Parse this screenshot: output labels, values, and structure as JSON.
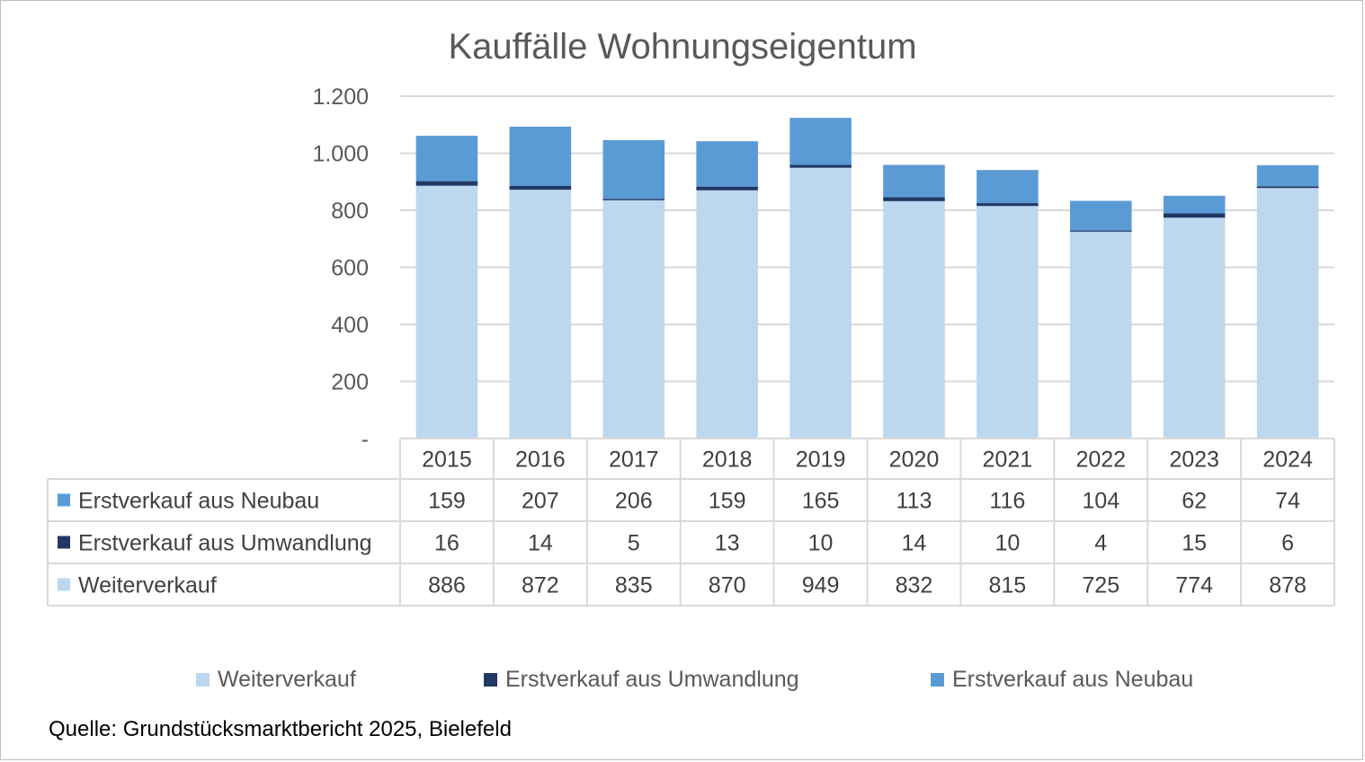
{
  "chart_data": {
    "type": "bar",
    "stacked": true,
    "title": "Kauffälle Wohnungseigentum",
    "categories": [
      "2015",
      "2016",
      "2017",
      "2018",
      "2019",
      "2020",
      "2021",
      "2022",
      "2023",
      "2024"
    ],
    "series": [
      {
        "name": "Weiterverkauf",
        "color": "#bdd7ee",
        "values": [
          886,
          872,
          835,
          870,
          949,
          832,
          815,
          725,
          774,
          878
        ]
      },
      {
        "name": "Erstverkauf aus Umwandlung",
        "color": "#203864",
        "values": [
          16,
          14,
          5,
          13,
          10,
          14,
          10,
          4,
          15,
          6
        ]
      },
      {
        "name": "Erstverkauf aus Neubau",
        "color": "#5b9bd5",
        "values": [
          159,
          207,
          206,
          159,
          165,
          113,
          116,
          104,
          62,
          74
        ]
      }
    ],
    "table_row_order": [
      "Erstverkauf aus Neubau",
      "Erstverkauf aus Umwandlung",
      "Weiterverkauf"
    ],
    "y_ticks": [
      {
        "value": 0,
        "label": "-"
      },
      {
        "value": 200,
        "label": "200"
      },
      {
        "value": 400,
        "label": "400"
      },
      {
        "value": 600,
        "label": "600"
      },
      {
        "value": 800,
        "label": "800"
      },
      {
        "value": 1000,
        "label": "1.000"
      },
      {
        "value": 1200,
        "label": "1.200"
      }
    ],
    "ylim": [
      0,
      1200
    ],
    "grid": true,
    "legend_position": "bottom",
    "data_table": true
  },
  "source": "Quelle: Grundstücksmarktbericht 2025, Bielefeld"
}
